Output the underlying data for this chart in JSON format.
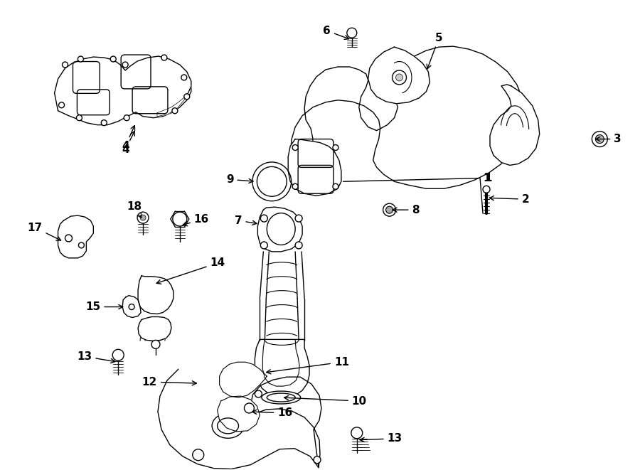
{
  "bg_color": "#ffffff",
  "line_color": "#000000",
  "figsize": [
    9.0,
    6.61
  ],
  "dpi": 100,
  "title_fontsize": 11,
  "lw": 1.0
}
